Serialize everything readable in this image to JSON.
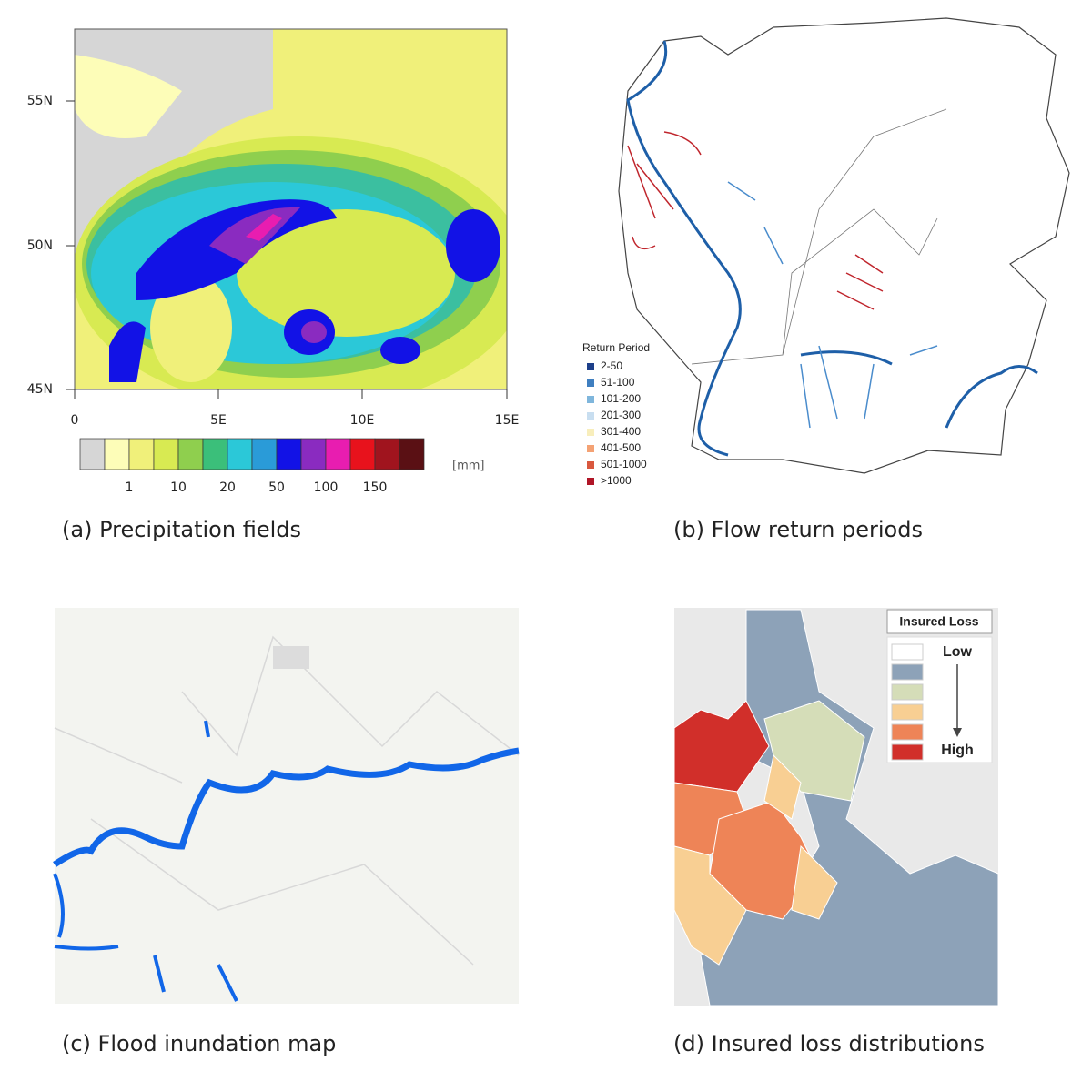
{
  "panels": [
    {
      "caption": "(a) Precipitation fields",
      "y_labels": [
        "55N",
        "50N",
        "45N"
      ],
      "x_labels": [
        "0",
        "5E",
        "10E",
        "15E"
      ],
      "colorbar_labels": [
        "1",
        "10",
        "20",
        "50",
        "100",
        "150"
      ],
      "colorbar_unit": "[mm]"
    },
    {
      "caption": "(b) Flow return periods",
      "legend_title": "Return Period",
      "legend_items": [
        "2-50",
        "51-100",
        "101-200",
        "201-300",
        "301-400",
        "401-500",
        "501-1000",
        ">1000"
      ]
    },
    {
      "caption": "(c) Flood inundation map"
    },
    {
      "caption": "(d) Insured loss distributions",
      "legend_title": "Insured Loss",
      "legend_low": "Low",
      "legend_high": "High"
    }
  ]
}
